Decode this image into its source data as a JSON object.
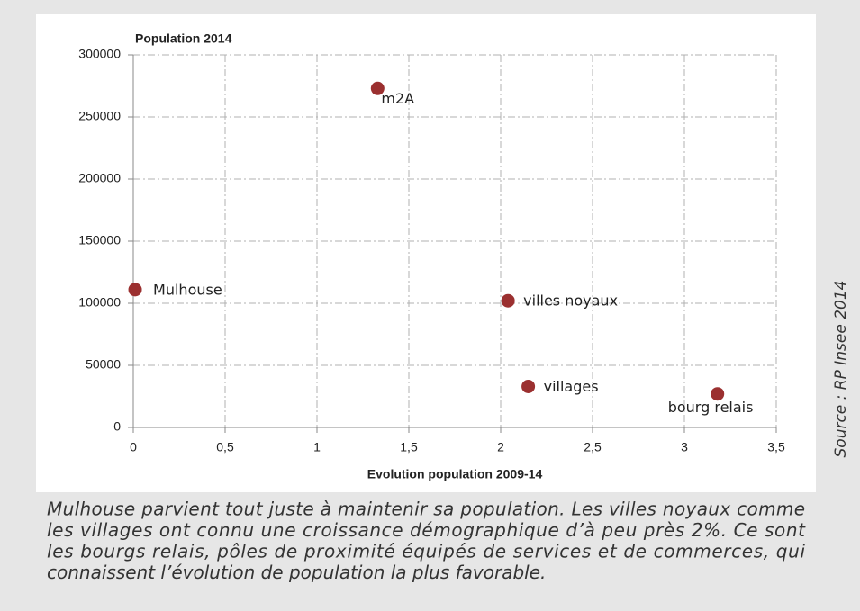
{
  "chart_data": {
    "type": "scatter",
    "y_label": "Population 2014",
    "x_label": "Evolution population 2009-14",
    "x": [
      0.01,
      1.33,
      2.04,
      2.15,
      3.18
    ],
    "values": [
      111000,
      273000,
      102000,
      33000,
      27000
    ],
    "point_labels": [
      "Mulhouse",
      "m2A",
      "villes noyaux",
      "villages",
      "bourg relais"
    ],
    "color": "#9b3030",
    "xlim": [
      0,
      3.5
    ],
    "xticks": [
      0,
      {
        "value": 0.5,
        "label": "0,5"
      },
      1,
      {
        "value": 1.5,
        "label": "1,5"
      },
      2,
      {
        "value": 2.5,
        "label": "2,5"
      },
      3,
      {
        "value": 3.5,
        "label": "3,5"
      }
    ],
    "ylim": [
      0,
      300000
    ],
    "yticks": [
      0,
      50000,
      100000,
      150000,
      200000,
      250000,
      300000
    ],
    "grid": true,
    "source": "Source : RP Insee  2014",
    "caption": [
      "Mulhouse parvient tout juste à maintenir sa population. Les villes noyaux comme",
      "les villages ont connu une croissance démographique d’à peu près 2%. Ce sont",
      "les bourgs relais, pôles de proximité équipés de services et de commerces, qui",
      "connaissent l’évolution de population la plus favorable."
    ]
  }
}
